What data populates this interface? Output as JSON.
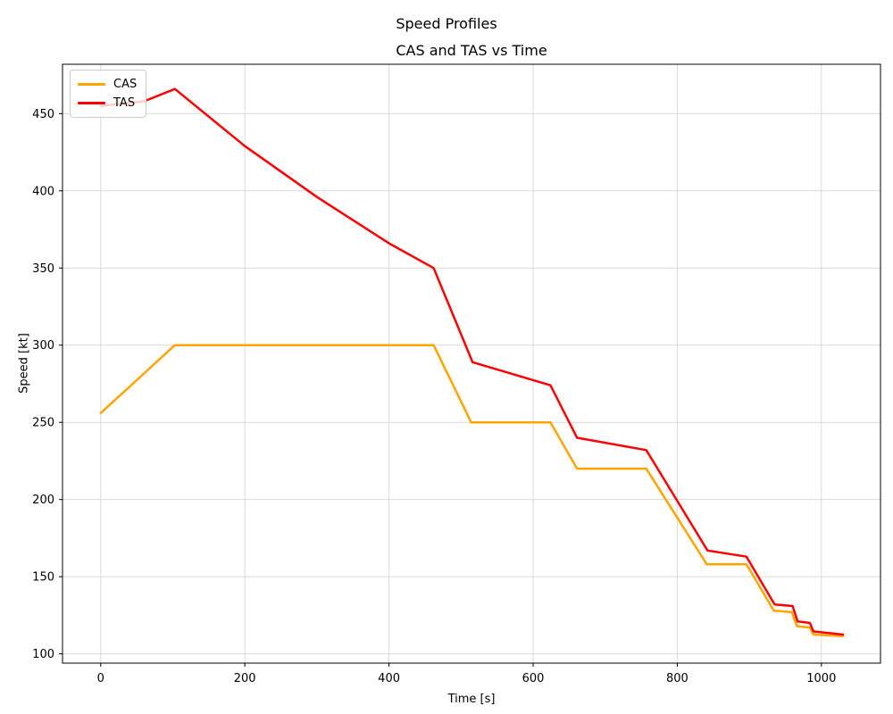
{
  "figure": {
    "suptitle": "Speed Profiles",
    "background": "#ffffff"
  },
  "chart_data": {
    "type": "line",
    "title": "CAS and TAS vs Time",
    "xlabel": "Time [s]",
    "ylabel": "Speed [kt]",
    "xlim": [
      -53,
      1082
    ],
    "ylim": [
      94,
      482
    ],
    "xticks": [
      0,
      200,
      400,
      600,
      800,
      1000
    ],
    "yticks": [
      100,
      150,
      200,
      250,
      300,
      350,
      400,
      450
    ],
    "grid": true,
    "grid_color": "#d9d9d9",
    "spine_color": "#000000",
    "legend_position": "upper-left",
    "series": [
      {
        "name": "CAS",
        "color": "#FFA500",
        "points": [
          [
            0,
            256
          ],
          [
            103,
            300
          ],
          [
            462,
            300
          ],
          [
            514,
            250
          ],
          [
            624,
            250
          ],
          [
            661,
            220
          ],
          [
            757,
            220
          ],
          [
            841,
            158
          ],
          [
            896,
            158
          ],
          [
            934,
            128
          ],
          [
            959,
            127
          ],
          [
            966,
            118
          ],
          [
            984,
            117
          ],
          [
            989,
            112.5
          ],
          [
            1030,
            111.5
          ]
        ]
      },
      {
        "name": "TAS",
        "color": "#FF0000",
        "points": [
          [
            0,
            455
          ],
          [
            60,
            458
          ],
          [
            103,
            466
          ],
          [
            200,
            429
          ],
          [
            300,
            396
          ],
          [
            400,
            366
          ],
          [
            462,
            350
          ],
          [
            516,
            289
          ],
          [
            624,
            274
          ],
          [
            661,
            240
          ],
          [
            757,
            232
          ],
          [
            842,
            167
          ],
          [
            896,
            163
          ],
          [
            935,
            132
          ],
          [
            960,
            131
          ],
          [
            967,
            121
          ],
          [
            984,
            120
          ],
          [
            989,
            114.5
          ],
          [
            1030,
            112.5
          ]
        ]
      }
    ]
  }
}
